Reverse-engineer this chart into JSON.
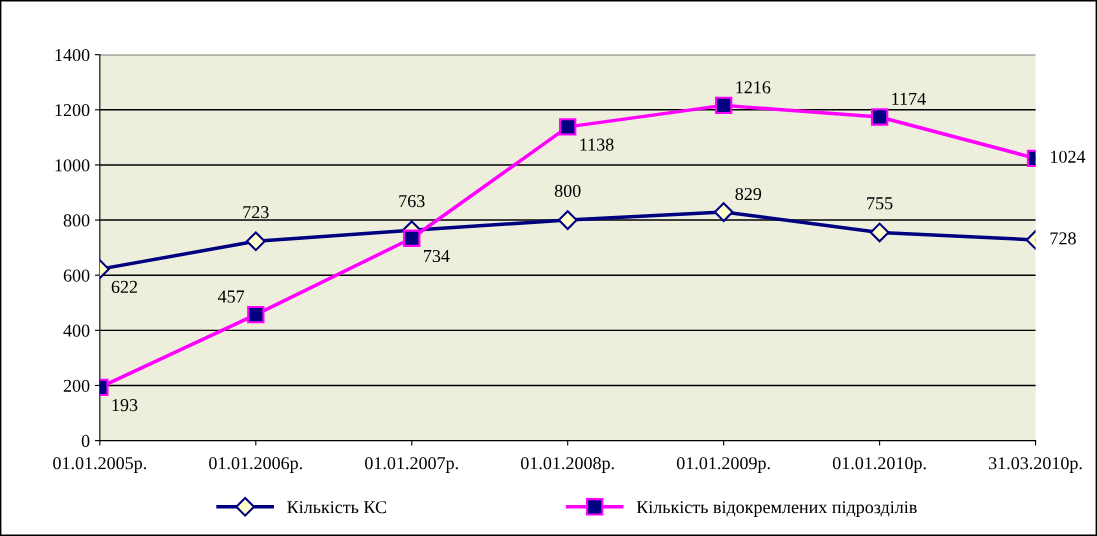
{
  "chart_data": {
    "type": "line",
    "categories": [
      "01.01.2005р.",
      "01.01.2006р.",
      "01.01.2007р.",
      "01.01.2008р.",
      "01.01.2009р.",
      "01.01.2010р.",
      "31.03.2010р."
    ],
    "series": [
      {
        "name": "Кількість КС",
        "color": "#000080",
        "marker": "diamond",
        "values": [
          622,
          723,
          763,
          800,
          829,
          755,
          728
        ]
      },
      {
        "name": "Кількість відокремлених підрозділів",
        "color": "#ff00ff",
        "marker": "square",
        "values": [
          193,
          457,
          734,
          1138,
          1216,
          1174,
          1024
        ]
      }
    ],
    "ylim": [
      0,
      1400
    ],
    "yticks": [
      0,
      200,
      400,
      600,
      800,
      1000,
      1200,
      1400
    ],
    "grid": "y",
    "legend": "bottom",
    "data_labels": true,
    "line_style": "solid"
  }
}
